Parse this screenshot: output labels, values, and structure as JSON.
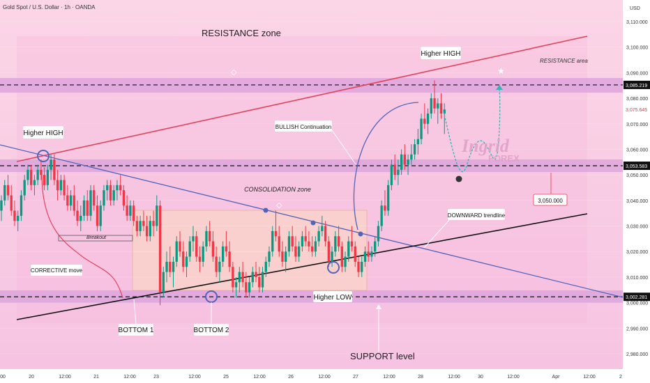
{
  "header": {
    "symbol": "Gold Spot / U.S. Dollar · 1h · OANDA",
    "currency": "USD"
  },
  "colors": {
    "up": "#089981",
    "down": "#f23645",
    "background": "#f7cbe4",
    "resistance_band": "#dca0dc",
    "trend_line_red": "#e0435a",
    "trend_line_blue": "#5263b8",
    "trend_line_black": "#111111"
  },
  "watermark": {
    "brand": "Ingrid",
    "sub": "FOREX"
  },
  "annotations": {
    "resistance_zone": "RESISTANCE zone",
    "resistance_area": "RESISTANCE area",
    "higher_high_left": "Higher HIGH",
    "higher_high_right": "Higher HIGH",
    "bullish_continuation": "BULLISH Continuation",
    "consolidation_zone": "CONSOLIDATION zone",
    "breakout": "Breakout",
    "corrective_move": "CORRECTIVE move",
    "downward_trendline": "DOWNWARD trendline",
    "target_label": "3,050.000",
    "higher_low": "Higher LOW",
    "bottom_1": "BOTTOM 1",
    "bottom_2": "BOTTOM 2",
    "support_level": "SUPPORT level"
  },
  "chart_data": {
    "type": "candlestick",
    "title": "Gold Spot / U.S. Dollar · 1h · OANDA",
    "y_unit": "USD",
    "ylim": [
      2975,
      3115
    ],
    "y_ticks": [
      "3,110.000",
      "3,100.000",
      "3,090.000",
      "3,080.000",
      "3,070.000",
      "3,060.000",
      "3,050.000",
      "3,040.000",
      "3,030.000",
      "3,020.000",
      "3,010.000",
      "3,000.000",
      "2,990.000",
      "2,980.000"
    ],
    "y_tick_values": [
      3110,
      3100,
      3090,
      3080,
      3070,
      3060,
      3050,
      3040,
      3030,
      3020,
      3010,
      3000,
      2990,
      2980
    ],
    "price_labels": [
      {
        "text": "3,085.219",
        "value": 3085.219,
        "style": "level"
      },
      {
        "text": "3,075.645",
        "value": 3075.645,
        "style": "last"
      },
      {
        "text": "3,053.583",
        "value": 3053.583,
        "style": "level"
      },
      {
        "text": "3,002.281",
        "value": 3002.281,
        "style": "level"
      }
    ],
    "x_ticks": [
      "00",
      "20",
      "12:00",
      "21",
      "12:00",
      "23",
      "12:00",
      "25",
      "12:00",
      "26",
      "12:00",
      "27",
      "12:00",
      "28",
      "12:00",
      "30",
      "12:00",
      "Apr",
      "12:00",
      "2"
    ],
    "x_tick_index": [
      0,
      12,
      24,
      36,
      48,
      60,
      72,
      84,
      96,
      108,
      120,
      132,
      144,
      156,
      168,
      180,
      192,
      204,
      216,
      228
    ],
    "levels": [
      3085.219,
      3053.583,
      3002.281
    ],
    "candles": [
      [
        3036,
        3042,
        3032,
        3040
      ],
      [
        3040,
        3048,
        3038,
        3046
      ],
      [
        3046,
        3050,
        3040,
        3042
      ],
      [
        3042,
        3046,
        3034,
        3036
      ],
      [
        3036,
        3040,
        3030,
        3032
      ],
      [
        3032,
        3036,
        3028,
        3034
      ],
      [
        3034,
        3044,
        3032,
        3042
      ],
      [
        3042,
        3050,
        3040,
        3048
      ],
      [
        3048,
        3054,
        3046,
        3052
      ],
      [
        3052,
        3054,
        3044,
        3046
      ],
      [
        3046,
        3050,
        3042,
        3048
      ],
      [
        3048,
        3054,
        3046,
        3052
      ],
      [
        3052,
        3056,
        3048,
        3050
      ],
      [
        3050,
        3053,
        3044,
        3046
      ],
      [
        3046,
        3054,
        3044,
        3052
      ],
      [
        3052,
        3058,
        3048,
        3056
      ],
      [
        3056,
        3058,
        3046,
        3048
      ],
      [
        3048,
        3052,
        3040,
        3044
      ],
      [
        3044,
        3050,
        3042,
        3048
      ],
      [
        3048,
        3050,
        3040,
        3042
      ],
      [
        3042,
        3046,
        3036,
        3038
      ],
      [
        3038,
        3044,
        3036,
        3042
      ],
      [
        3042,
        3046,
        3034,
        3036
      ],
      [
        3036,
        3040,
        3030,
        3032
      ],
      [
        3032,
        3038,
        3028,
        3034
      ],
      [
        3034,
        3042,
        3032,
        3040
      ],
      [
        3040,
        3044,
        3032,
        3034
      ],
      [
        3034,
        3046,
        3032,
        3044
      ],
      [
        3044,
        3046,
        3036,
        3038
      ],
      [
        3038,
        3042,
        3028,
        3030
      ],
      [
        3030,
        3040,
        3028,
        3038
      ],
      [
        3038,
        3046,
        3036,
        3044
      ],
      [
        3044,
        3048,
        3040,
        3046
      ],
      [
        3046,
        3048,
        3038,
        3040
      ],
      [
        3040,
        3046,
        3038,
        3044
      ],
      [
        3044,
        3048,
        3040,
        3046
      ],
      [
        3046,
        3050,
        3042,
        3044
      ],
      [
        3044,
        3046,
        3036,
        3038
      ],
      [
        3038,
        3042,
        3032,
        3034
      ],
      [
        3034,
        3040,
        3032,
        3038
      ],
      [
        3038,
        3040,
        3030,
        3032
      ],
      [
        3032,
        3034,
        3026,
        3028
      ],
      [
        3028,
        3034,
        3026,
        3032
      ],
      [
        3032,
        3036,
        3028,
        3030
      ],
      [
        3030,
        3034,
        3024,
        3026
      ],
      [
        3026,
        3034,
        3024,
        3032
      ],
      [
        3032,
        3036,
        3026,
        3030
      ],
      [
        3030,
        3042,
        3028,
        3038
      ],
      [
        3038,
        3040,
        2999,
        3004
      ],
      [
        3004,
        3014,
        3002,
        3012
      ],
      [
        3012,
        3020,
        3008,
        3016
      ],
      [
        3016,
        3022,
        3010,
        3012
      ],
      [
        3012,
        3018,
        3006,
        3016
      ],
      [
        3016,
        3026,
        3014,
        3024
      ],
      [
        3024,
        3028,
        3018,
        3020
      ],
      [
        3020,
        3024,
        3012,
        3014
      ],
      [
        3014,
        3020,
        3010,
        3018
      ],
      [
        3018,
        3026,
        3016,
        3024
      ],
      [
        3024,
        3030,
        3020,
        3026
      ],
      [
        3026,
        3028,
        3016,
        3018
      ],
      [
        3018,
        3022,
        3012,
        3016
      ],
      [
        3016,
        3024,
        3014,
        3022
      ],
      [
        3022,
        3030,
        3020,
        3028
      ],
      [
        3028,
        3032,
        3022,
        3024
      ],
      [
        3024,
        3028,
        3016,
        3018
      ],
      [
        3018,
        3022,
        3010,
        3012
      ],
      [
        3012,
        3018,
        3008,
        3016
      ],
      [
        3016,
        3024,
        3014,
        3022
      ],
      [
        3022,
        3028,
        3018,
        3020
      ],
      [
        3020,
        3024,
        3012,
        3014
      ],
      [
        3014,
        3016,
        3004,
        3006
      ],
      [
        3006,
        3010,
        3002,
        3008
      ],
      [
        3008,
        3014,
        3004,
        3012
      ],
      [
        3012,
        3016,
        3006,
        3008
      ],
      [
        3008,
        3012,
        3002,
        3004
      ],
      [
        3004,
        3010,
        3002,
        3008
      ],
      [
        3008,
        3014,
        3006,
        3012
      ],
      [
        3012,
        3016,
        3008,
        3010
      ],
      [
        3010,
        3014,
        3004,
        3006
      ],
      [
        3006,
        3014,
        3004,
        3012
      ],
      [
        3012,
        3018,
        3010,
        3016
      ],
      [
        3016,
        3022,
        3014,
        3020
      ],
      [
        3020,
        3030,
        3018,
        3028
      ],
      [
        3028,
        3036,
        3024,
        3026
      ],
      [
        3026,
        3030,
        3018,
        3020
      ],
      [
        3020,
        3024,
        3014,
        3016
      ],
      [
        3016,
        3022,
        3012,
        3020
      ],
      [
        3020,
        3028,
        3018,
        3026
      ],
      [
        3026,
        3030,
        3020,
        3022
      ],
      [
        3022,
        3026,
        3016,
        3018
      ],
      [
        3018,
        3024,
        3016,
        3022
      ],
      [
        3022,
        3028,
        3020,
        3026
      ],
      [
        3026,
        3030,
        3022,
        3024
      ],
      [
        3024,
        3028,
        3020,
        3022
      ],
      [
        3022,
        3026,
        3018,
        3020
      ],
      [
        3020,
        3026,
        3018,
        3024
      ],
      [
        3024,
        3030,
        3022,
        3028
      ],
      [
        3028,
        3034,
        3026,
        3030
      ],
      [
        3030,
        3032,
        3022,
        3024
      ],
      [
        3024,
        3026,
        3014,
        3016
      ],
      [
        3016,
        3022,
        3014,
        3020
      ],
      [
        3020,
        3028,
        3018,
        3026
      ],
      [
        3026,
        3030,
        3020,
        3022
      ],
      [
        3022,
        3024,
        3012,
        3014
      ],
      [
        3014,
        3020,
        3012,
        3018
      ],
      [
        3018,
        3026,
        3016,
        3024
      ],
      [
        3024,
        3030,
        3020,
        3022
      ],
      [
        3022,
        3024,
        3014,
        3016
      ],
      [
        3016,
        3018,
        3010,
        3012
      ],
      [
        3012,
        3018,
        3010,
        3016
      ],
      [
        3016,
        3022,
        3014,
        3020
      ],
      [
        3020,
        3024,
        3016,
        3018
      ],
      [
        3018,
        3022,
        3016,
        3020
      ],
      [
        3020,
        3026,
        3018,
        3024
      ],
      [
        3024,
        3032,
        3022,
        3030
      ],
      [
        3030,
        3040,
        3028,
        3038
      ],
      [
        3038,
        3044,
        3034,
        3036
      ],
      [
        3036,
        3048,
        3034,
        3046
      ],
      [
        3046,
        3056,
        3044,
        3054
      ],
      [
        3054,
        3058,
        3048,
        3050
      ],
      [
        3050,
        3056,
        3046,
        3052
      ],
      [
        3052,
        3060,
        3050,
        3058
      ],
      [
        3058,
        3062,
        3052,
        3054
      ],
      [
        3054,
        3058,
        3050,
        3056
      ],
      [
        3056,
        3062,
        3054,
        3058
      ],
      [
        3058,
        3064,
        3056,
        3062
      ],
      [
        3062,
        3068,
        3058,
        3064
      ],
      [
        3064,
        3074,
        3062,
        3072
      ],
      [
        3072,
        3078,
        3068,
        3070
      ],
      [
        3070,
        3076,
        3066,
        3074
      ],
      [
        3074,
        3082,
        3072,
        3080
      ],
      [
        3080,
        3087,
        3074,
        3076
      ],
      [
        3076,
        3080,
        3070,
        3078
      ],
      [
        3078,
        3082,
        3072,
        3074
      ],
      [
        3074,
        3078,
        3066,
        3075.6
      ]
    ],
    "series": [
      {
        "name": "Higher HIGH",
        "values": [
          3062,
          3087
        ]
      },
      {
        "name": "Higher LOW",
        "values": [
          3013
        ]
      },
      {
        "name": "BOTTOM 1",
        "values": [
          2999
        ]
      },
      {
        "name": "BOTTOM 2",
        "values": [
          3002
        ]
      }
    ]
  }
}
